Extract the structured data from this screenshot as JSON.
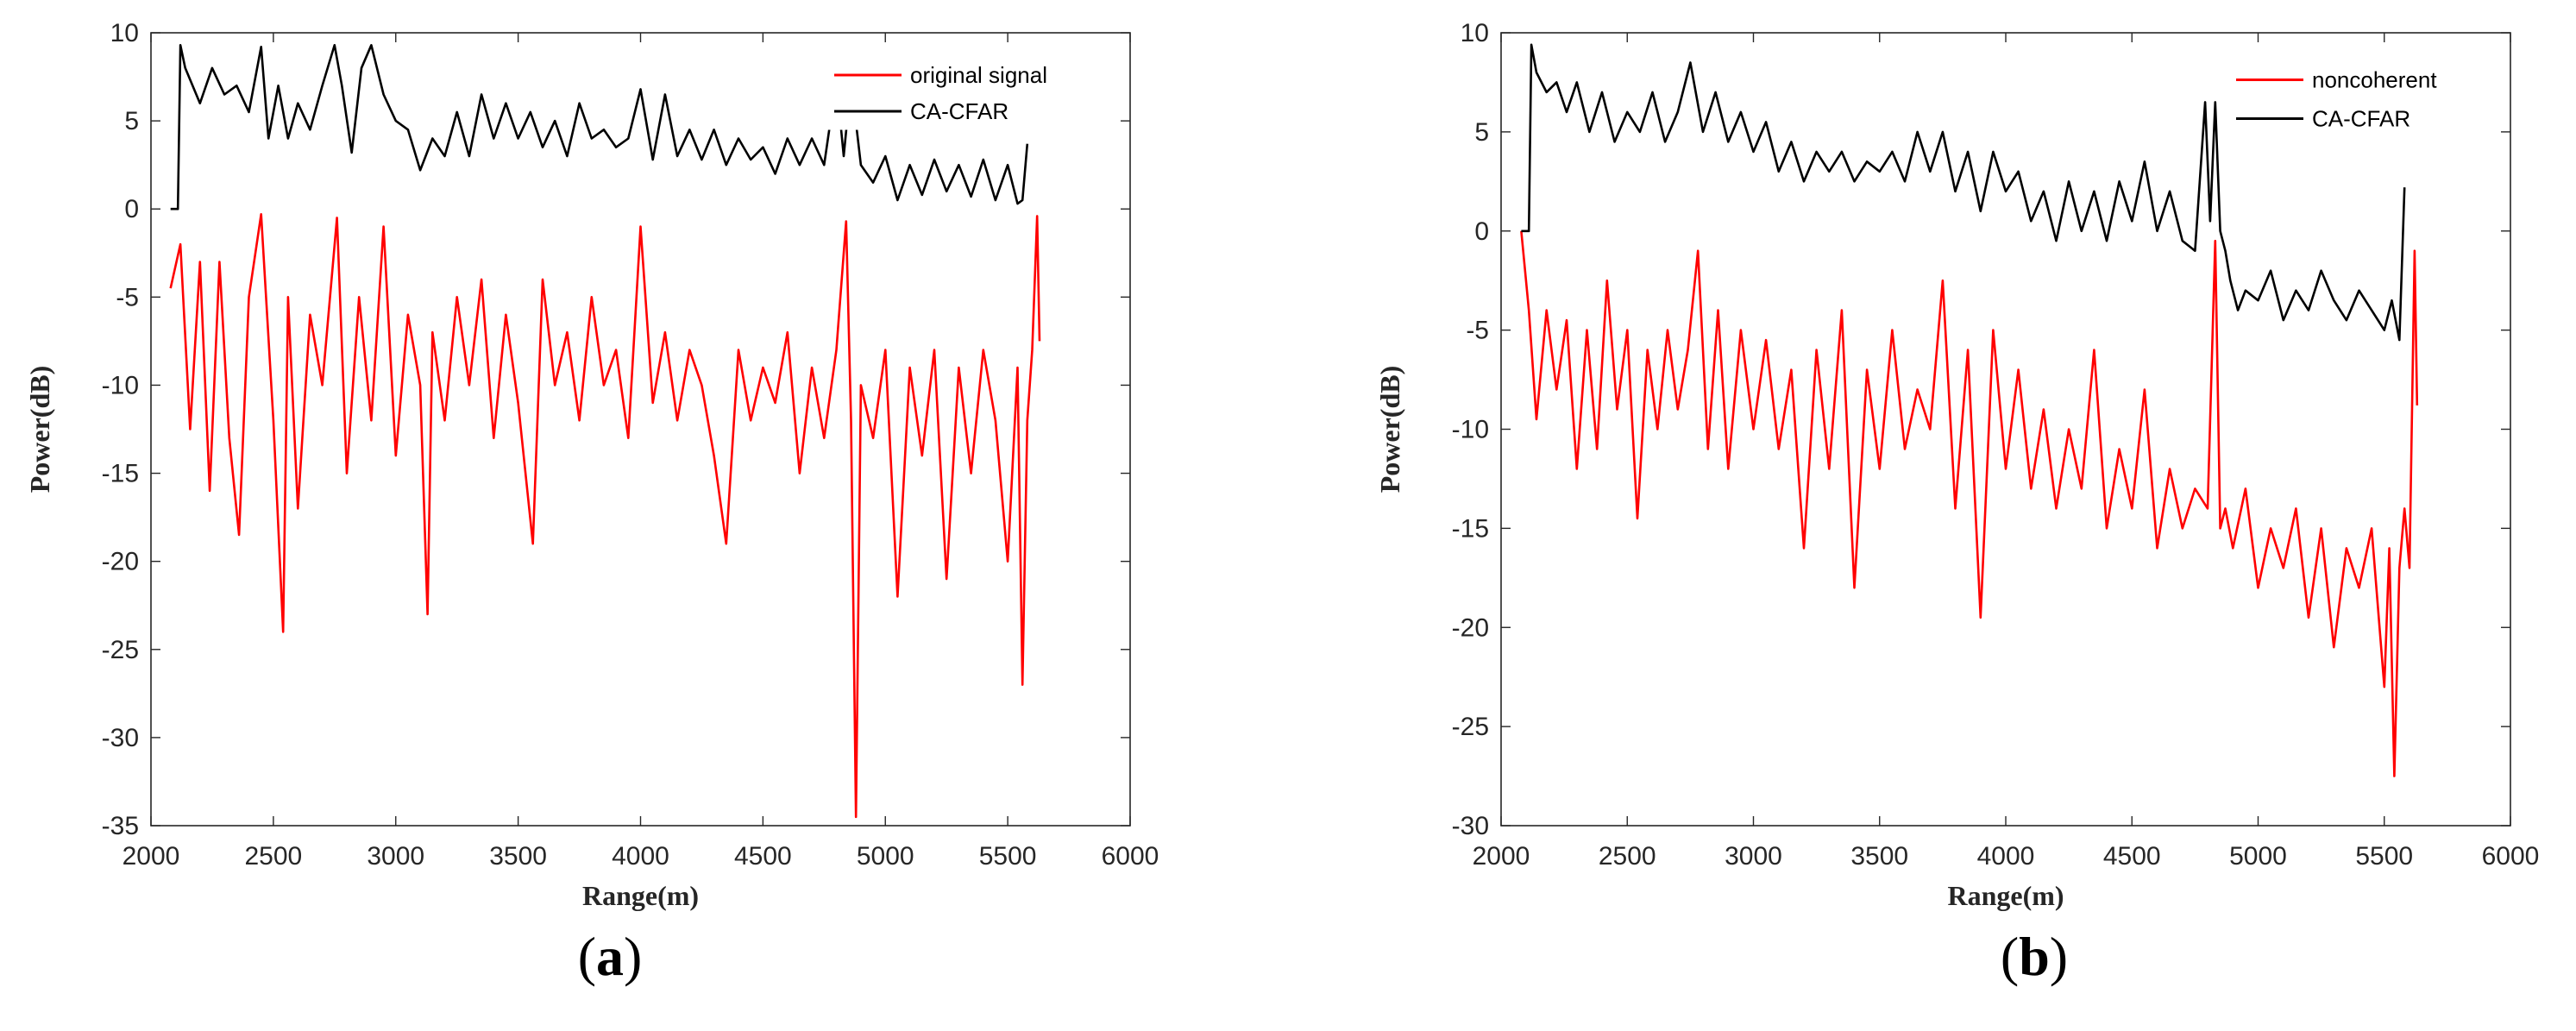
{
  "chart_data": [
    {
      "type": "line",
      "panel_label": [
        "(",
        "a",
        ")"
      ],
      "title": "",
      "xlabel": "Range(m)",
      "ylabel": "Power(dB)",
      "xlim": [
        2000,
        6000
      ],
      "ylim": [
        -35,
        10
      ],
      "xticks": [
        2000,
        2500,
        3000,
        3500,
        4000,
        4500,
        5000,
        5500,
        6000
      ],
      "yticks": [
        -35,
        -30,
        -25,
        -20,
        -15,
        -10,
        -5,
        0,
        5,
        10
      ],
      "legend": {
        "placement": "top-right",
        "entries": [
          "original signal",
          "CA-CFAR"
        ]
      },
      "series": [
        {
          "name": "original signal",
          "color": "#ff0000",
          "x": [
            2080,
            2120,
            2160,
            2200,
            2240,
            2280,
            2320,
            2360,
            2400,
            2450,
            2500,
            2540,
            2560,
            2600,
            2650,
            2700,
            2760,
            2800,
            2850,
            2900,
            2950,
            3000,
            3050,
            3100,
            3130,
            3150,
            3200,
            3250,
            3300,
            3350,
            3400,
            3450,
            3500,
            3560,
            3600,
            3650,
            3700,
            3750,
            3800,
            3850,
            3900,
            3950,
            4000,
            4050,
            4100,
            4150,
            4200,
            4250,
            4300,
            4350,
            4400,
            4450,
            4500,
            4550,
            4600,
            4650,
            4700,
            4750,
            4800,
            4840,
            4860,
            4880,
            4900,
            4950,
            5000,
            5050,
            5100,
            5150,
            5200,
            5250,
            5300,
            5350,
            5400,
            5450,
            5500,
            5540,
            5560,
            5580,
            5600,
            5620,
            5630
          ],
          "y": [
            -4.5,
            -2,
            -12.5,
            -3,
            -16,
            -3,
            -13,
            -18.5,
            -5,
            -0.3,
            -12,
            -24,
            -5,
            -17,
            -6,
            -10,
            -0.5,
            -15,
            -5,
            -12,
            -1,
            -14,
            -6,
            -10,
            -23,
            -7,
            -12,
            -5,
            -10,
            -4,
            -13,
            -6,
            -11,
            -19,
            -4,
            -10,
            -7,
            -12,
            -5,
            -10,
            -8,
            -13,
            -1,
            -11,
            -7,
            -12,
            -8,
            -10,
            -14,
            -19,
            -8,
            -12,
            -9,
            -11,
            -7,
            -15,
            -9,
            -13,
            -8,
            -0.7,
            -12,
            -34.5,
            -10,
            -13,
            -8,
            -22,
            -9,
            -14,
            -8,
            -21,
            -9,
            -15,
            -8,
            -12,
            -20,
            -9,
            -27,
            -12,
            -8,
            -0.4,
            -7.5
          ]
        },
        {
          "name": "CA-CFAR",
          "color": "#000000",
          "x": [
            2080,
            2110,
            2120,
            2140,
            2200,
            2250,
            2300,
            2350,
            2400,
            2450,
            2480,
            2520,
            2560,
            2600,
            2650,
            2700,
            2750,
            2780,
            2820,
            2860,
            2900,
            2950,
            3000,
            3050,
            3100,
            3150,
            3200,
            3250,
            3300,
            3350,
            3400,
            3450,
            3500,
            3550,
            3600,
            3650,
            3700,
            3750,
            3800,
            3850,
            3900,
            3950,
            4000,
            4050,
            4100,
            4150,
            4200,
            4250,
            4300,
            4350,
            4400,
            4450,
            4500,
            4550,
            4600,
            4650,
            4700,
            4750,
            4800,
            4830,
            4860,
            4900,
            4950,
            5000,
            5050,
            5100,
            5150,
            5200,
            5250,
            5300,
            5350,
            5400,
            5450,
            5500,
            5540,
            5560,
            5580
          ],
          "y": [
            0,
            0,
            9.3,
            8,
            6,
            8,
            6.5,
            7,
            5.5,
            9.2,
            4,
            7,
            4,
            6,
            4.5,
            7,
            9.3,
            7,
            3.2,
            8,
            9.3,
            6.5,
            5,
            4.5,
            2.2,
            4,
            3,
            5.5,
            3,
            6.5,
            4,
            6,
            4,
            5.5,
            3.5,
            5,
            3,
            6,
            4,
            4.5,
            3.5,
            4,
            6.8,
            2.8,
            6.5,
            3,
            4.5,
            2.8,
            4.5,
            2.5,
            4,
            2.8,
            3.5,
            2,
            4,
            2.5,
            4,
            2.5,
            7.3,
            3,
            7.3,
            2.5,
            1.5,
            3,
            0.5,
            2.5,
            0.8,
            2.8,
            1,
            2.5,
            0.7,
            2.8,
            0.5,
            2.5,
            0.3,
            0.5,
            3.7
          ]
        }
      ]
    },
    {
      "type": "line",
      "panel_label": [
        "(",
        "b",
        ")"
      ],
      "title": "",
      "xlabel": "Range(m)",
      "ylabel": "Power(dB)",
      "xlim": [
        2000,
        6000
      ],
      "ylim": [
        -30,
        10
      ],
      "xticks": [
        2000,
        2500,
        3000,
        3500,
        4000,
        4500,
        5000,
        5500,
        6000
      ],
      "yticks": [
        -30,
        -25,
        -20,
        -15,
        -10,
        -5,
        0,
        5,
        10
      ],
      "legend": {
        "placement": "top-right",
        "entries": [
          "noncoherent",
          "CA-CFAR"
        ]
      },
      "series": [
        {
          "name": "noncoherent",
          "color": "#ff0000",
          "x": [
            2080,
            2110,
            2140,
            2180,
            2220,
            2260,
            2300,
            2340,
            2380,
            2420,
            2460,
            2500,
            2540,
            2580,
            2620,
            2660,
            2700,
            2740,
            2780,
            2820,
            2860,
            2900,
            2950,
            3000,
            3050,
            3100,
            3150,
            3200,
            3250,
            3300,
            3350,
            3400,
            3450,
            3500,
            3550,
            3600,
            3650,
            3700,
            3750,
            3800,
            3850,
            3900,
            3950,
            4000,
            4050,
            4100,
            4150,
            4200,
            4250,
            4300,
            4350,
            4400,
            4450,
            4500,
            4550,
            4600,
            4650,
            4700,
            4750,
            4800,
            4830,
            4850,
            4870,
            4900,
            4950,
            5000,
            5050,
            5100,
            5150,
            5200,
            5250,
            5300,
            5350,
            5400,
            5450,
            5500,
            5520,
            5540,
            5560,
            5580,
            5600,
            5620,
            5630
          ],
          "y": [
            0,
            -4,
            -9.5,
            -4,
            -8,
            -4.5,
            -12,
            -5,
            -11,
            -2.5,
            -9,
            -5,
            -14.5,
            -6,
            -10,
            -5,
            -9,
            -6,
            -1,
            -11,
            -4,
            -12,
            -5,
            -10,
            -5.5,
            -11,
            -7,
            -16,
            -6,
            -12,
            -4,
            -18,
            -7,
            -12,
            -5,
            -11,
            -8,
            -10,
            -2.5,
            -14,
            -6,
            -19.5,
            -5,
            -12,
            -7,
            -13,
            -9,
            -14,
            -10,
            -13,
            -6,
            -15,
            -11,
            -14,
            -8,
            -16,
            -12,
            -15,
            -13,
            -14,
            -0.5,
            -15,
            -14,
            -16,
            -13,
            -18,
            -15,
            -17,
            -14,
            -19.5,
            -15,
            -21,
            -16,
            -18,
            -15,
            -23,
            -16,
            -27.5,
            -17,
            -14,
            -17,
            -1,
            -8.8
          ]
        },
        {
          "name": "CA-CFAR",
          "color": "#000000",
          "x": [
            2080,
            2110,
            2120,
            2140,
            2180,
            2220,
            2260,
            2300,
            2350,
            2400,
            2450,
            2500,
            2550,
            2600,
            2650,
            2700,
            2750,
            2800,
            2850,
            2900,
            2950,
            3000,
            3050,
            3100,
            3150,
            3200,
            3250,
            3300,
            3350,
            3400,
            3450,
            3500,
            3550,
            3600,
            3650,
            3700,
            3750,
            3800,
            3850,
            3900,
            3950,
            4000,
            4050,
            4100,
            4150,
            4200,
            4250,
            4300,
            4350,
            4400,
            4450,
            4500,
            4550,
            4600,
            4650,
            4700,
            4750,
            4790,
            4810,
            4830,
            4850,
            4870,
            4890,
            4920,
            4950,
            5000,
            5050,
            5100,
            5150,
            5200,
            5250,
            5300,
            5350,
            5400,
            5450,
            5500,
            5530,
            5560,
            5580
          ],
          "y": [
            0,
            0,
            9.4,
            8,
            7,
            7.5,
            6,
            7.5,
            5,
            7,
            4.5,
            6,
            5,
            7,
            4.5,
            6,
            8.5,
            5,
            7,
            4.5,
            6,
            4,
            5.5,
            3,
            4.5,
            2.5,
            4,
            3,
            4,
            2.5,
            3.5,
            3,
            4,
            2.5,
            5,
            3,
            5,
            2,
            4,
            1,
            4,
            2,
            3,
            0.5,
            2,
            -0.5,
            2.5,
            0,
            2,
            -0.5,
            2.5,
            0.5,
            3.5,
            0,
            2,
            -0.5,
            -1,
            6.5,
            0.5,
            6.5,
            0,
            -1,
            -2.5,
            -4,
            -3,
            -3.5,
            -2,
            -4.5,
            -3,
            -4,
            -2,
            -3.5,
            -4.5,
            -3,
            -4,
            -5,
            -3.5,
            -5.5,
            2.2
          ]
        }
      ]
    }
  ]
}
